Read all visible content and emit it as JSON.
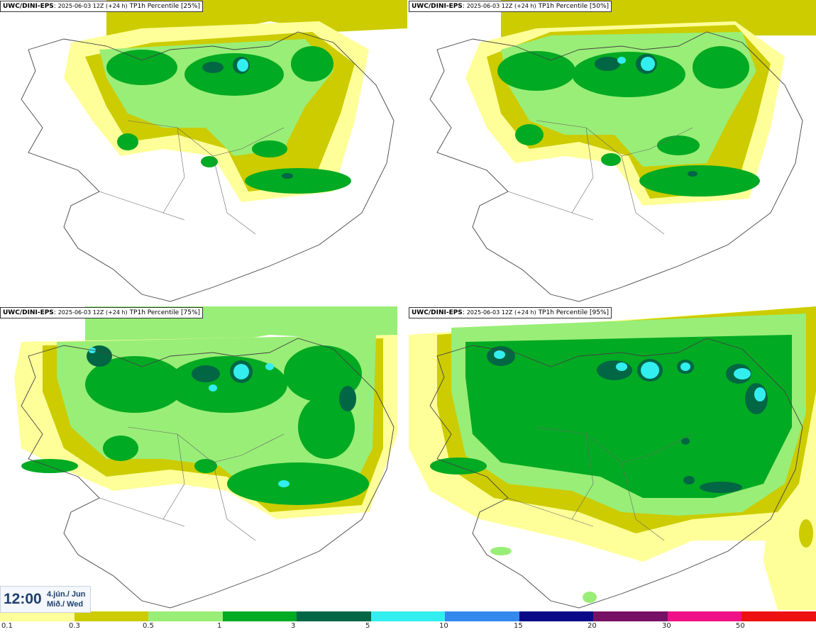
{
  "panels": [
    {
      "model": "UWC/DINI-EPS",
      "run": "2025-06-03 12Z (+24 h)",
      "field": "TP1h Percentile [25%]"
    },
    {
      "model": "UWC/DINI-EPS",
      "run": "2025-06-03 12Z (+24 h)",
      "field": "TP1h Percentile [50%]"
    },
    {
      "model": "UWC/DINI-EPS",
      "run": "2025-06-03 12Z (+24 h)",
      "field": "TP1h Percentile [75%]"
    },
    {
      "model": "UWC/DINI-EPS",
      "run": "2025-06-03 12Z (+24 h)",
      "field": "TP1h Percentile [95%]"
    }
  ],
  "time": {
    "clock": "12:00",
    "date_line1": "4.jún./ Jun",
    "date_line2": "Mið./ Wed"
  },
  "colorbar": {
    "labels": [
      "0.1",
      "0.3",
      "0.5",
      "1",
      "3",
      "5",
      "10",
      "15",
      "20",
      "30",
      "50"
    ],
    "colors": [
      "#ffff99",
      "#cccc00",
      "#99ee77",
      "#00aa22",
      "#006644",
      "#33eeee",
      "#3388ee",
      "#0a0a88",
      "#771166",
      "#ee1188",
      "#ee1111"
    ]
  }
}
